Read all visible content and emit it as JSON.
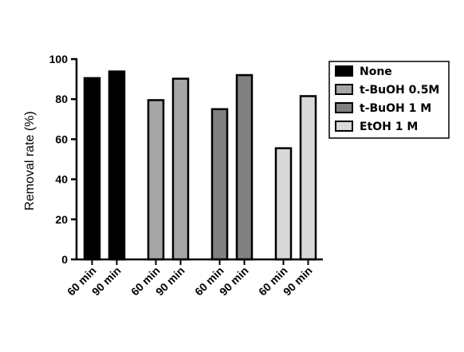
{
  "chart_data": {
    "type": "bar",
    "title": "",
    "xlabel": "",
    "ylabel": "Removal rate (%)",
    "ylim": [
      0,
      100
    ],
    "yticks": [
      0,
      20,
      40,
      60,
      80,
      100
    ],
    "grid": false,
    "legend_position": "right",
    "groups": [
      {
        "series": "None",
        "color": "#000000",
        "bars": [
          {
            "label": "60 min",
            "value": 90.5
          },
          {
            "label": "90 min",
            "value": 93.8
          }
        ]
      },
      {
        "series": "t-BuOH 0.5M",
        "color": "#a6a6a6",
        "bars": [
          {
            "label": "60 min",
            "value": 79.5
          },
          {
            "label": "90 min",
            "value": 90.2
          }
        ]
      },
      {
        "series": "t-BuOH 1 M",
        "color": "#808080",
        "bars": [
          {
            "label": "60 min",
            "value": 75
          },
          {
            "label": "90 min",
            "value": 92
          }
        ]
      },
      {
        "series": "EtOH 1 M",
        "color": "#d9d9d9",
        "bars": [
          {
            "label": "60 min",
            "value": 55.5
          },
          {
            "label": "90 min",
            "value": 81.5
          }
        ]
      }
    ],
    "legend": [
      "None",
      "t-BuOH 0.5M",
      "t-BuOH 1 M",
      "EtOH 1 M"
    ]
  }
}
